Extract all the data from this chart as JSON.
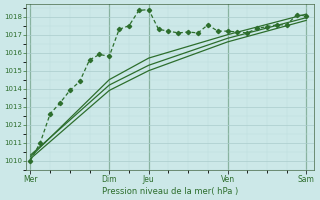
{
  "background_color": "#cce8e8",
  "grid_color_major": "#aacccc",
  "grid_color_minor": "#bbdddd",
  "line_color": "#2d6e2d",
  "title": "Pression niveau de la mer( hPa )",
  "ylim": [
    1009.5,
    1018.7
  ],
  "yticks": [
    1010,
    1011,
    1012,
    1013,
    1014,
    1015,
    1016,
    1017,
    1018
  ],
  "day_labels": [
    "Mer",
    "Dim",
    "Jeu",
    "Ven",
    "Sam"
  ],
  "day_positions": [
    0,
    96,
    144,
    240,
    336
  ],
  "xlim": [
    -5,
    345
  ],
  "line1_x": [
    0,
    12,
    24,
    36,
    48,
    60,
    72,
    84,
    96,
    108,
    120,
    132,
    144,
    156,
    168,
    180,
    192,
    204,
    216,
    228,
    240,
    252,
    264,
    276,
    288,
    300,
    312,
    324,
    336
  ],
  "line1_y": [
    1010.0,
    1011.0,
    1012.6,
    1013.2,
    1013.9,
    1014.4,
    1015.6,
    1015.9,
    1015.8,
    1017.3,
    1017.5,
    1018.35,
    1018.4,
    1017.3,
    1017.2,
    1017.1,
    1017.15,
    1017.1,
    1017.55,
    1017.2,
    1017.2,
    1017.15,
    1017.1,
    1017.35,
    1017.45,
    1017.55,
    1017.55,
    1018.1,
    1018.05
  ],
  "line2_x": [
    0,
    96,
    144,
    240,
    336
  ],
  "line2_y": [
    1010.2,
    1014.5,
    1015.7,
    1017.0,
    1018.15
  ],
  "line3_x": [
    0,
    96,
    144,
    240,
    336
  ],
  "line3_y": [
    1010.3,
    1014.2,
    1015.3,
    1016.8,
    1017.95
  ],
  "line4_x": [
    0,
    96,
    144,
    240,
    336
  ],
  "line4_y": [
    1010.1,
    1013.9,
    1015.0,
    1016.6,
    1017.8
  ]
}
